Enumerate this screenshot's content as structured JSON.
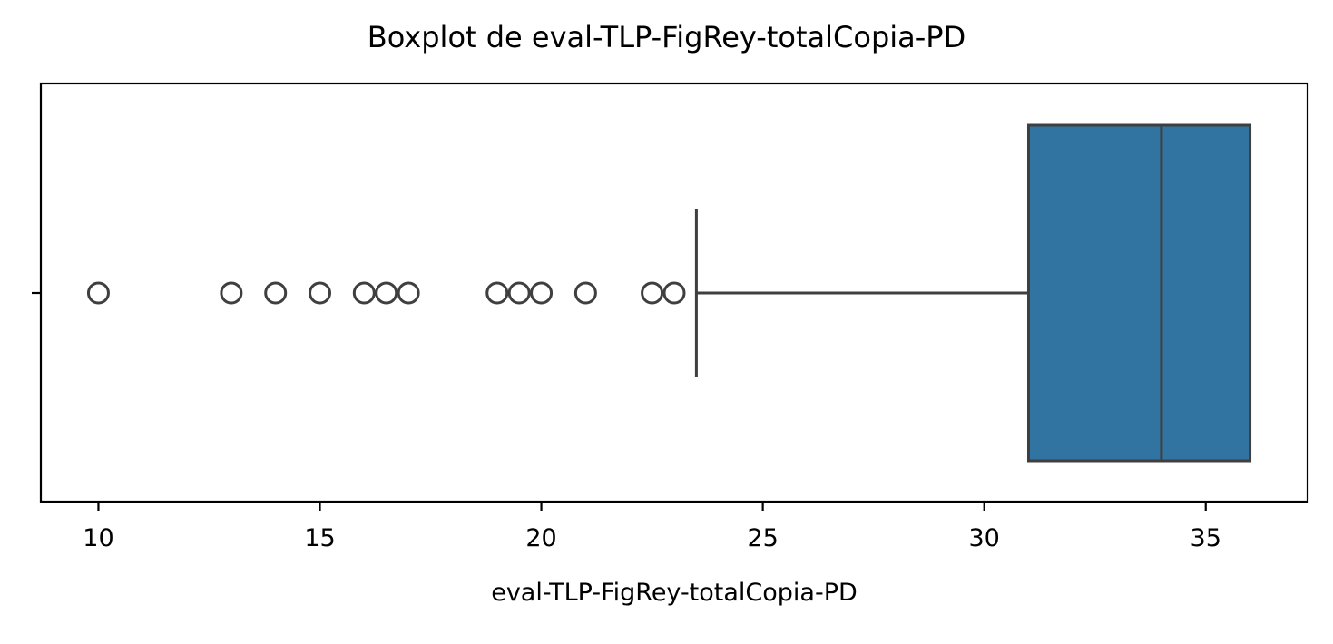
{
  "chart_data": {
    "type": "boxplot",
    "orientation": "horizontal",
    "title": "Boxplot de eval-TLP-FigRey-totalCopia-PD",
    "xlabel": "eval-TLP-FigRey-totalCopia-PD",
    "ylabel": "",
    "xlim": [
      8.7,
      37.3
    ],
    "x_ticks": [
      10,
      15,
      20,
      25,
      30,
      35
    ],
    "x_tick_labels": [
      "10",
      "15",
      "20",
      "25",
      "30",
      "35"
    ],
    "box": {
      "whisker_low": 23.5,
      "q1": 31,
      "median": 34,
      "q3": 36,
      "whisker_high": 36
    },
    "outliers": [
      10,
      13,
      14,
      15,
      16,
      16.5,
      17,
      19,
      19.5,
      20,
      21,
      22.5,
      23
    ],
    "box_color": "#3274a1",
    "line_color": "#3f3f3f",
    "grid": false
  }
}
